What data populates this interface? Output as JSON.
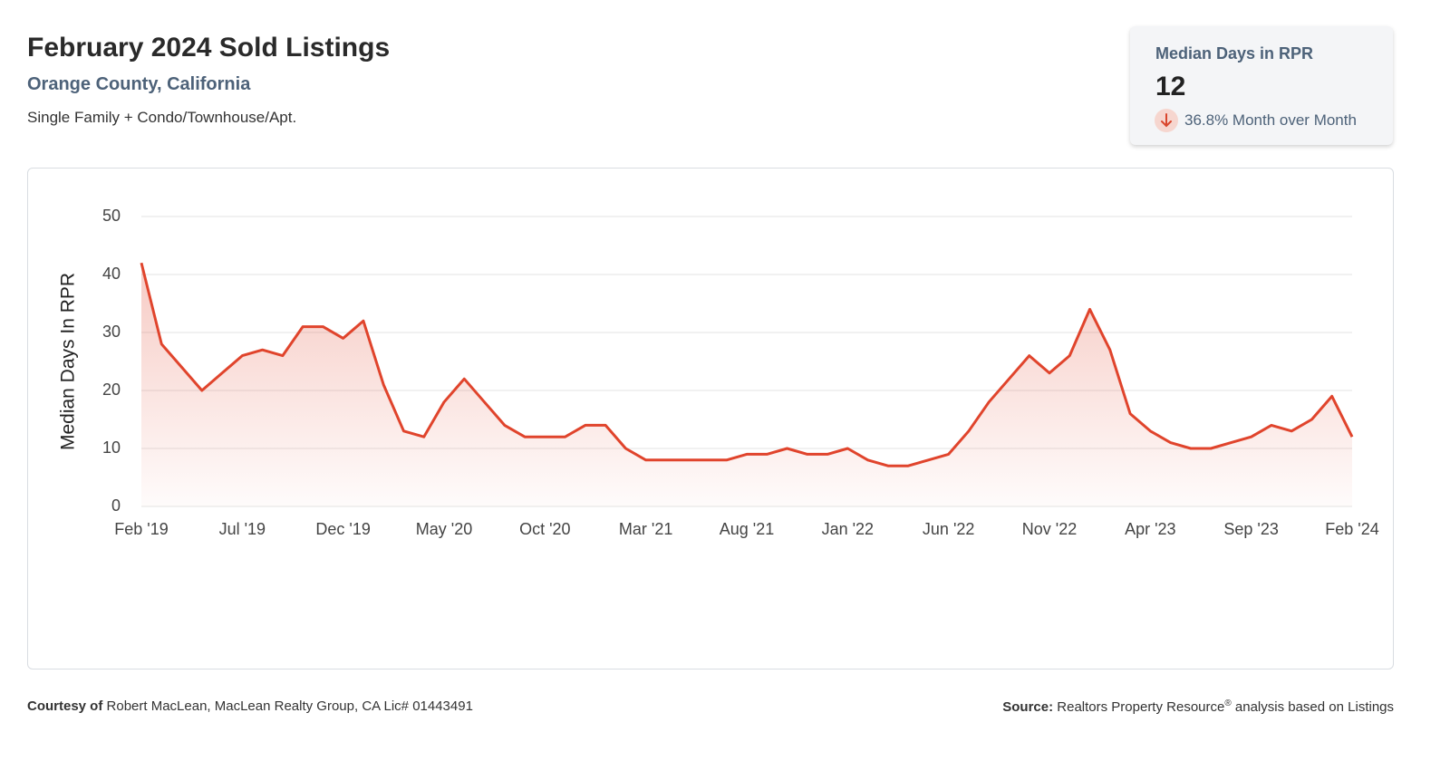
{
  "header": {
    "title": "February 2024 Sold Listings",
    "location": "Orange County, California",
    "property_types": "Single Family + Condo/Townhouse/Apt."
  },
  "kpi": {
    "label": "Median Days in RPR",
    "value": 12,
    "change": "36.8% Month over Month"
  },
  "chart_data": {
    "type": "line",
    "y_label": "Median Days In RPR",
    "categories": [
      "Feb '19",
      null,
      null,
      null,
      null,
      "Jul '19",
      null,
      null,
      null,
      null,
      "Dec '19",
      null,
      null,
      null,
      null,
      "May '20",
      null,
      null,
      null,
      null,
      "Oct '20",
      null,
      null,
      null,
      null,
      "Mar '21",
      null,
      null,
      null,
      null,
      "Aug '21",
      null,
      null,
      null,
      null,
      "Jan '22",
      null,
      null,
      null,
      null,
      "Jun '22",
      null,
      null,
      null,
      null,
      "Nov '22",
      null,
      null,
      null,
      null,
      "Apr '23",
      null,
      null,
      null,
      null,
      "Sep '23",
      null,
      null,
      null,
      null,
      "Feb '24"
    ],
    "values": [
      42,
      28,
      24,
      20,
      23,
      26,
      27,
      26,
      31,
      31,
      29,
      32,
      21,
      13,
      12,
      18,
      22,
      18,
      14,
      12,
      12,
      12,
      14,
      14,
      10,
      8,
      8,
      8,
      8,
      8,
      9,
      9,
      10,
      9,
      9,
      10,
      8,
      7,
      7,
      8,
      9,
      13,
      18,
      22,
      26,
      23,
      26,
      34,
      27,
      16,
      13,
      11,
      10,
      10,
      11,
      12,
      14,
      13,
      15,
      19,
      12
    ],
    "color": "#e0442c",
    "ylim": [
      0,
      50
    ],
    "yticks": [
      0,
      10,
      20,
      30,
      40,
      50
    ],
    "grid": true
  },
  "footer": {
    "courtesy_label": "Courtesy of",
    "courtesy": "Robert MacLean, MacLean Realty Group, CA Lic# 01443491",
    "source_label": "Source:",
    "source": "Realtors Property Resource",
    "source_mark": "®",
    "source_rest": "analysis based on Listings"
  }
}
